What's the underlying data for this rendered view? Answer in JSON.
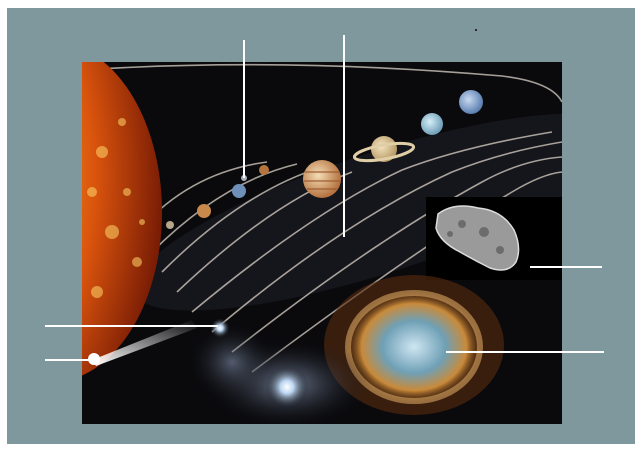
{
  "diagram": {
    "background_color": "#7f989d",
    "panel_color": "#0a0a0d",
    "pointer_color": "#ffffff",
    "objects": [
      "sun",
      "mercury",
      "venus",
      "earth",
      "moon",
      "mars",
      "jupiter",
      "saturn",
      "uranus",
      "neptune",
      "asteroid",
      "comet",
      "nebula",
      "galaxy",
      "star"
    ],
    "pointer_lines": [
      "pointer-earth-region",
      "pointer-asteroid-belt-region",
      "pointer-asteroid",
      "pointer-star",
      "pointer-comet",
      "pointer-nebula"
    ]
  }
}
